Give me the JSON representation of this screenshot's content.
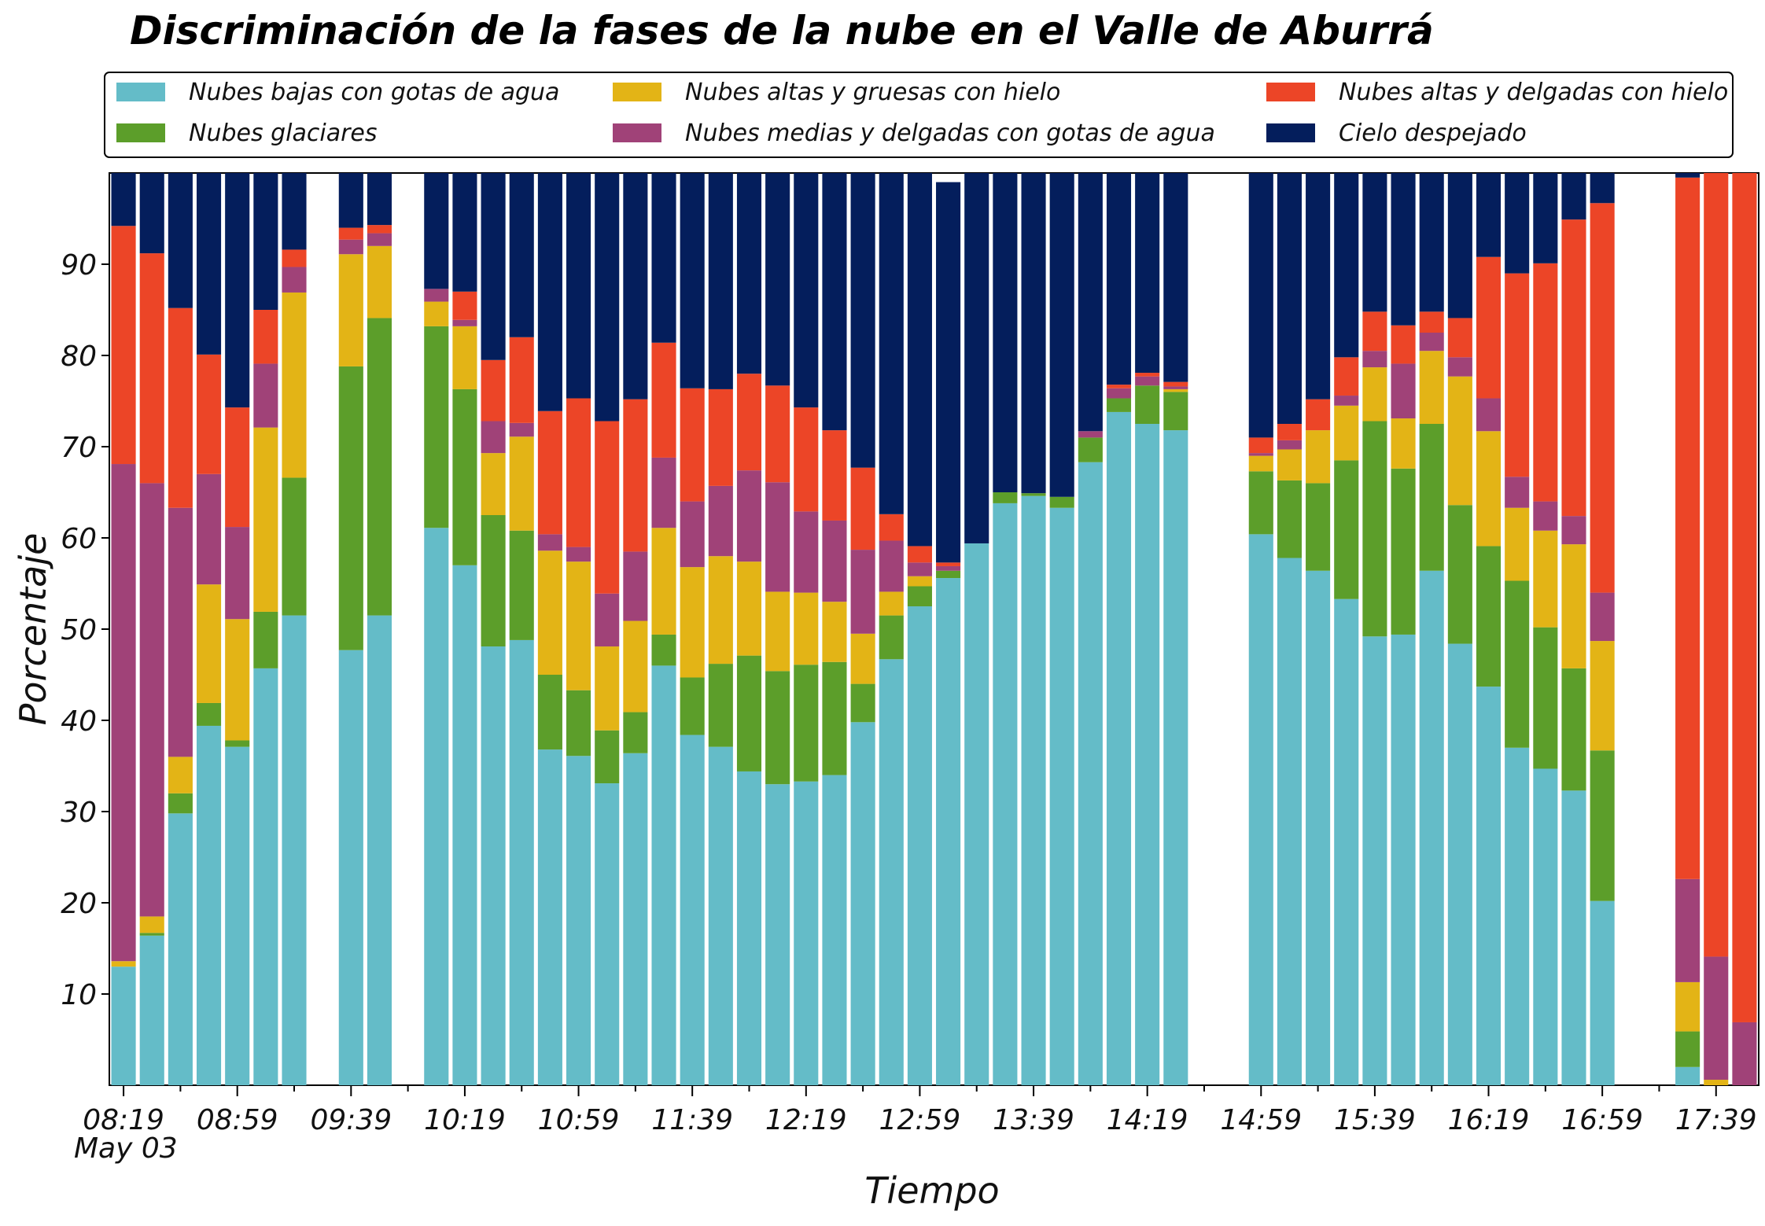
{
  "chart_data": {
    "type": "bar",
    "stacked": true,
    "title": "Discriminación de la fases de la nube en el Valle de Aburrá",
    "xlabel": "Tiempo",
    "ylabel": "Porcentaje",
    "date_label": "May 03",
    "ylim": [
      0,
      100
    ],
    "yticks": [
      10,
      20,
      30,
      40,
      50,
      60,
      70,
      80,
      90
    ],
    "grid": false,
    "legend_position": "top",
    "xtick_labels": [
      "08:19",
      "08:59",
      "09:39",
      "10:19",
      "10:59",
      "11:39",
      "12:19",
      "12:59",
      "13:39",
      "14:19",
      "14:59",
      "15:39",
      "16:19",
      "16:59",
      "17:39"
    ],
    "x": [
      "08:19",
      "08:29",
      "08:39",
      "08:49",
      "08:59",
      "09:09",
      "09:19",
      "09:29",
      "09:39",
      "09:49",
      "09:59",
      "10:09",
      "10:19",
      "10:29",
      "10:39",
      "10:49",
      "10:59",
      "11:09",
      "11:19",
      "11:29",
      "11:39",
      "11:49",
      "11:59",
      "12:09",
      "12:19",
      "12:29",
      "12:39",
      "12:49",
      "12:59",
      "13:09",
      "13:19",
      "13:29",
      "13:39",
      "13:49",
      "13:59",
      "14:09",
      "14:19",
      "14:29",
      "14:39",
      "14:49",
      "14:59",
      "15:09",
      "15:19",
      "15:29",
      "15:39",
      "15:49",
      "15:59",
      "16:09",
      "16:19",
      "16:29",
      "16:39",
      "16:49",
      "16:59",
      "17:09",
      "17:19",
      "17:29",
      "17:39",
      "17:49"
    ],
    "series": [
      {
        "name": "Nubes bajas con gotas de agua",
        "color": "#64bcc8",
        "values": [
          13.0,
          16.4,
          29.8,
          39.4,
          37.1,
          45.7,
          51.5,
          null,
          47.7,
          51.5,
          null,
          61.1,
          57.0,
          48.1,
          48.8,
          36.8,
          36.1,
          33.1,
          36.4,
          46.0,
          38.4,
          37.1,
          34.4,
          33.0,
          33.3,
          34.0,
          39.8,
          46.7,
          52.5,
          55.6,
          59.4,
          63.8,
          64.6,
          63.3,
          68.3,
          73.8,
          72.5,
          71.8,
          null,
          null,
          60.4,
          57.8,
          56.4,
          53.3,
          49.2,
          49.4,
          56.4,
          48.4,
          43.7,
          37.0,
          34.7,
          32.3,
          20.2,
          null,
          null,
          2.0,
          null,
          null
        ]
      },
      {
        "name": "Nubes glaciares",
        "color": "#5c9e2a",
        "values": [
          0,
          0.3,
          2.2,
          2.5,
          0.7,
          6.2,
          15.1,
          null,
          31.1,
          32.6,
          null,
          22.1,
          19.3,
          14.4,
          12.0,
          8.2,
          7.2,
          5.8,
          4.5,
          3.4,
          6.3,
          9.1,
          12.7,
          12.4,
          12.8,
          12.4,
          4.2,
          4.8,
          2.2,
          0.8,
          0,
          1.2,
          0.3,
          1.2,
          2.7,
          1.5,
          4.2,
          4.2,
          null,
          null,
          6.9,
          8.5,
          9.6,
          15.2,
          23.6,
          18.2,
          16.1,
          15.2,
          15.4,
          18.3,
          15.5,
          13.4,
          16.5,
          null,
          null,
          3.9,
          0,
          null
        ]
      },
      {
        "name": "Nubes altas y gruesas con hielo",
        "color": "#e3b416",
        "values": [
          0.6,
          1.8,
          4.0,
          13.0,
          13.3,
          20.2,
          20.3,
          null,
          12.3,
          7.9,
          null,
          2.7,
          6.9,
          6.8,
          10.3,
          13.6,
          14.1,
          9.2,
          10.0,
          11.7,
          12.1,
          11.8,
          10.3,
          8.7,
          7.9,
          6.6,
          5.5,
          2.6,
          1.1,
          0,
          0,
          0,
          0,
          0,
          0,
          0,
          0,
          0.3,
          null,
          null,
          1.7,
          3.4,
          5.8,
          6.0,
          5.9,
          5.5,
          8.0,
          14.1,
          12.6,
          8.0,
          10.6,
          13.6,
          12.0,
          null,
          null,
          5.4,
          0.6,
          null
        ]
      },
      {
        "name": "Nubes medias y delgadas con gotas de agua",
        "color": "#a04278",
        "values": [
          54.5,
          47.5,
          27.3,
          12.1,
          10.1,
          7.0,
          2.8,
          null,
          1.6,
          1.4,
          null,
          1.4,
          0.7,
          3.5,
          1.5,
          1.8,
          1.6,
          5.8,
          7.6,
          7.7,
          7.2,
          7.7,
          10.0,
          12.0,
          8.9,
          8.9,
          9.2,
          5.6,
          1.5,
          0.5,
          0,
          0,
          0,
          0,
          0.7,
          1.1,
          1.0,
          0.3,
          null,
          null,
          0.3,
          1.0,
          0,
          1.1,
          1.8,
          6.0,
          2.0,
          2.1,
          3.6,
          3.4,
          3.2,
          3.1,
          5.3,
          null,
          null,
          11.3,
          13.5,
          6.9
        ]
      },
      {
        "name": "Nubes altas y delgadas con hielo",
        "color": "#ec4527",
        "values": [
          26.1,
          25.2,
          21.9,
          13.1,
          13.1,
          5.9,
          1.9,
          null,
          1.3,
          0.9,
          null,
          0,
          3.1,
          6.7,
          9.4,
          13.5,
          16.3,
          18.9,
          16.7,
          12.6,
          12.4,
          10.6,
          10.6,
          10.6,
          11.4,
          9.9,
          9.0,
          2.9,
          1.8,
          0.4,
          0,
          0,
          0,
          0,
          0,
          0.4,
          0.4,
          0.5,
          null,
          null,
          1.7,
          1.8,
          3.4,
          4.2,
          4.3,
          4.2,
          2.3,
          4.3,
          15.5,
          22.3,
          26.1,
          32.5,
          42.7,
          null,
          null,
          76.9,
          85.9,
          93.1
        ]
      },
      {
        "name": "Cielo despejado",
        "color": "#041e5c",
        "values": [
          5.8,
          8.8,
          14.8,
          19.9,
          25.7,
          15.0,
          8.4,
          null,
          6.0,
          5.7,
          null,
          12.7,
          13.0,
          20.5,
          18.0,
          26.1,
          24.7,
          27.2,
          24.8,
          18.6,
          23.6,
          23.7,
          22.0,
          23.3,
          25.7,
          28.2,
          32.3,
          37.4,
          40.9,
          41.7,
          40.6,
          35.0,
          35.1,
          35.5,
          28.3,
          23.2,
          21.9,
          22.9,
          null,
          null,
          29.0,
          27.5,
          24.8,
          20.2,
          15.2,
          16.7,
          15.2,
          15.9,
          9.2,
          11.0,
          9.9,
          5.1,
          3.3,
          null,
          null,
          0.5,
          0,
          0
        ]
      }
    ]
  }
}
